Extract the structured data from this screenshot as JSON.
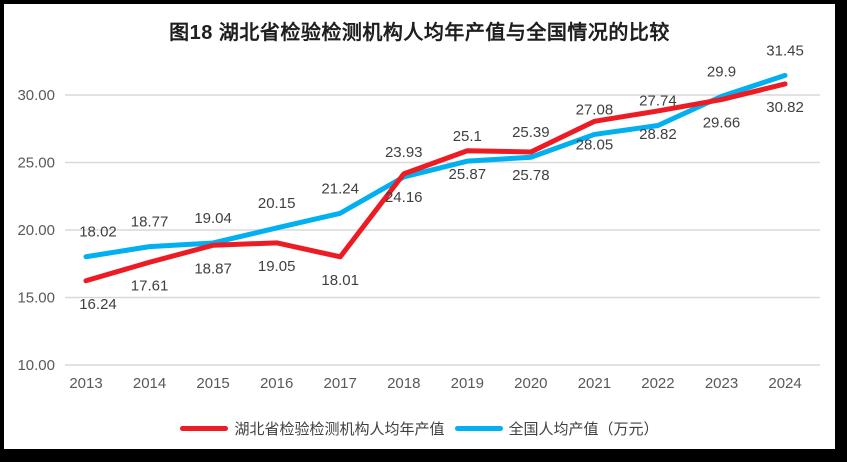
{
  "chart_data": {
    "type": "line",
    "title": "图18  湖北省检验检测机构人均年产值与全国情况的比较",
    "categories": [
      "2013",
      "2014",
      "2015",
      "2016",
      "2017",
      "2018",
      "2019",
      "2020",
      "2021",
      "2022",
      "2023",
      "2024"
    ],
    "series": [
      {
        "name": "湖北省检验检测机构人均年产值",
        "color": "#ed1c24",
        "label_position": "below",
        "values": [
          16.24,
          17.61,
          18.87,
          19.05,
          18.01,
          24.16,
          25.87,
          25.78,
          28.05,
          28.82,
          29.66,
          30.82
        ],
        "labels": [
          "16.24",
          "17.61",
          "18.87",
          "19.05",
          "18.01",
          "24.16",
          "25.87",
          "25.78",
          "28.05",
          "28.82",
          "29.66",
          "30.82"
        ]
      },
      {
        "name": "全国人均产值（万元）",
        "color": "#00b0f0",
        "label_position": "above",
        "values": [
          18.02,
          18.77,
          19.04,
          20.15,
          21.24,
          23.93,
          25.1,
          25.39,
          27.08,
          27.74,
          29.9,
          31.45
        ],
        "labels": [
          "18.02",
          "18.77",
          "19.04",
          "20.15",
          "21.24",
          "23.93",
          "25.1",
          "25.39",
          "27.08",
          "27.74",
          "29.9",
          "31.45"
        ]
      }
    ],
    "y_ticks": [
      {
        "value": 10,
        "label": "10.00"
      },
      {
        "value": 15,
        "label": "15.00"
      },
      {
        "value": 20,
        "label": "20.00"
      },
      {
        "value": 25,
        "label": "25.00"
      },
      {
        "value": 30,
        "label": "30.00"
      }
    ],
    "ylim": [
      10,
      32.5
    ],
    "grid": "horizontal",
    "legend_position": "bottom"
  },
  "colors": {
    "frame": "#000000",
    "background": "#ffffff",
    "gridline": "#d9d9d9",
    "axis_text": "#595959",
    "data_label_text": "#404040",
    "title_text": "#1f1f1f"
  }
}
